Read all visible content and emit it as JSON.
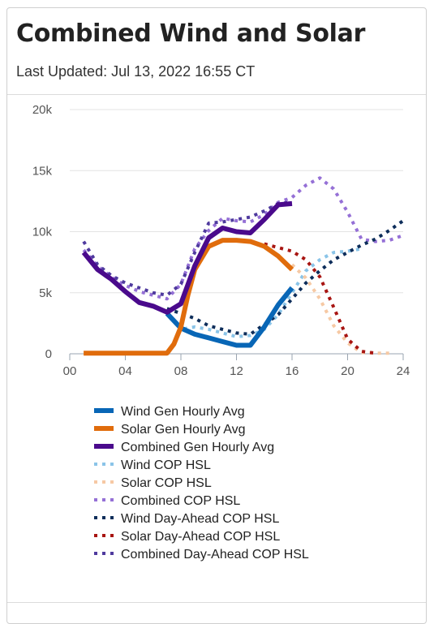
{
  "header": {
    "title": "Combined Wind and Solar",
    "last_updated": "Last Updated: Jul 13, 2022 16:55 CT"
  },
  "chart_data": {
    "type": "line",
    "title": "Combined Wind and Solar",
    "xlabel": "",
    "ylabel": "",
    "xlim": [
      0,
      24
    ],
    "ylim": [
      0,
      21000
    ],
    "x_ticks": [
      "00",
      "04",
      "08",
      "12",
      "16",
      "20",
      "24"
    ],
    "y_ticks": [
      "0",
      "5k",
      "10k",
      "15k",
      "20k"
    ],
    "grid": true,
    "legend_position": "bottom",
    "series": [
      {
        "name": "Wind Gen Hourly Avg",
        "color": "#0866b6",
        "style": "solid",
        "x": [
          7,
          8,
          9,
          10,
          11,
          12,
          13,
          14,
          15,
          16
        ],
        "y": [
          3300,
          2100,
          1600,
          1300,
          1000,
          700,
          700,
          2200,
          4000,
          5400
        ]
      },
      {
        "name": "Solar Gen Hourly Avg",
        "color": "#e06c0c",
        "style": "solid",
        "x": [
          1,
          2,
          3,
          4,
          5,
          6,
          7,
          7.5,
          8,
          8.5,
          9,
          10,
          11,
          12,
          13,
          14,
          15,
          16
        ],
        "y": [
          50,
          50,
          50,
          50,
          50,
          50,
          50,
          800,
          2200,
          4800,
          6900,
          8800,
          9300,
          9300,
          9200,
          8800,
          8000,
          6900
        ]
      },
      {
        "name": "Combined Gen Hourly Avg",
        "color": "#4a0a8c",
        "style": "solid",
        "x": [
          1,
          2,
          3,
          4,
          5,
          6,
          7,
          8,
          9,
          10,
          11,
          12,
          13,
          14,
          15,
          16
        ],
        "y": [
          8300,
          6900,
          6100,
          5100,
          4200,
          3900,
          3400,
          4100,
          7200,
          9500,
          10300,
          10000,
          9900,
          11000,
          12200,
          12300
        ]
      },
      {
        "name": "Wind COP HSL",
        "color": "#8ac4e8",
        "style": "dotted",
        "x": [
          7,
          8,
          9,
          10,
          11,
          12,
          13,
          14,
          15,
          16,
          17,
          18,
          19,
          20,
          21
        ],
        "y": [
          3300,
          2000,
          2200,
          2000,
          1700,
          1400,
          1500,
          2000,
          3200,
          5000,
          6800,
          7700,
          8300,
          8400,
          8600
        ]
      },
      {
        "name": "Solar COP HSL",
        "color": "#f6c9a4",
        "style": "dotted",
        "x": [
          16,
          17,
          18,
          19,
          20,
          21,
          22,
          23
        ],
        "y": [
          7300,
          6200,
          4500,
          2300,
          900,
          100,
          50,
          50
        ]
      },
      {
        "name": "Combined COP HSL",
        "color": "#9570d6",
        "style": "dotted",
        "x": [
          1,
          2,
          3,
          4,
          5,
          6,
          7,
          8,
          9,
          10,
          11,
          12,
          13,
          14,
          15,
          16,
          17,
          18,
          19,
          20,
          21,
          22,
          23,
          24
        ],
        "y": [
          8500,
          7200,
          6300,
          5600,
          5100,
          4800,
          4500,
          5700,
          8600,
          10100,
          11100,
          10900,
          10800,
          11400,
          12400,
          12800,
          13800,
          14400,
          13500,
          11600,
          9400,
          9200,
          9300,
          9700
        ]
      },
      {
        "name": "Wind Day-Ahead COP HSL",
        "color": "#0d2d5a",
        "style": "dotted",
        "x": [
          7,
          8,
          9,
          10,
          11,
          12,
          13,
          14,
          15,
          16,
          17,
          18,
          19,
          20,
          21,
          22,
          23,
          24
        ],
        "y": [
          3700,
          3300,
          2900,
          2300,
          2000,
          1700,
          1600,
          2400,
          3200,
          4500,
          5800,
          6800,
          7700,
          8300,
          8900,
          9400,
          10100,
          10900
        ]
      },
      {
        "name": "Solar Day-Ahead COP HSL",
        "color": "#a81512",
        "style": "dotted",
        "x": [
          14,
          15,
          16,
          17,
          18,
          19,
          20,
          21,
          22
        ],
        "y": [
          9000,
          8700,
          8400,
          7700,
          6300,
          3800,
          1200,
          200,
          50
        ]
      },
      {
        "name": "Combined Day-Ahead COP HSL",
        "color": "#4f3a9e",
        "style": "dotted",
        "x": [
          1,
          2,
          3,
          4,
          5,
          6,
          7,
          8,
          9,
          10,
          11,
          12,
          13,
          14,
          15,
          16
        ],
        "y": [
          9200,
          7300,
          6400,
          5800,
          5400,
          5000,
          4800,
          5700,
          8300,
          10700,
          10800,
          11000,
          11200,
          11700,
          12300,
          12400
        ]
      }
    ]
  }
}
